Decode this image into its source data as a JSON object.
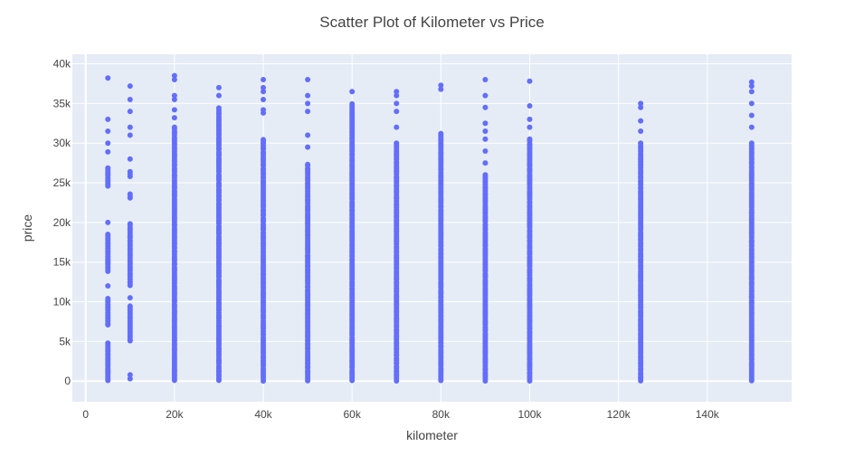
{
  "chart_data": {
    "type": "scatter",
    "title": "Scatter Plot of Kilometer vs Price",
    "xlabel": "kilometer",
    "ylabel": "price",
    "xlim": [
      -3000,
      159000
    ],
    "ylim": [
      -2600,
      41200
    ],
    "grid": true,
    "x_ticks": [
      0,
      20000,
      40000,
      60000,
      80000,
      100000,
      120000,
      140000
    ],
    "x_tick_labels": [
      "0",
      "20k",
      "40k",
      "60k",
      "80k",
      "100k",
      "120k",
      "140k"
    ],
    "y_ticks": [
      0,
      5000,
      10000,
      15000,
      20000,
      25000,
      30000,
      35000,
      40000
    ],
    "y_tick_labels": [
      "0",
      "5k",
      "10k",
      "15k",
      "20k",
      "25k",
      "30k",
      "35k",
      "40k"
    ],
    "colors": {
      "marker": "#636efa",
      "plot_bg": "#e5ecf6",
      "grid": "#ffffff",
      "text": "#444444"
    },
    "columns": [
      {
        "x": 5000,
        "dense": [
          [
            0,
            4800
          ],
          [
            7000,
            10500
          ],
          [
            13800,
            18500
          ],
          [
            24500,
            27000
          ]
        ],
        "outliers": [
          1200,
          12000,
          15000,
          20000,
          28900,
          30000,
          31500,
          33000,
          38200
        ]
      },
      {
        "x": 10000,
        "dense": [
          [
            5000,
            9500
          ],
          [
            12000,
            20000
          ],
          [
            23000,
            23700
          ],
          [
            25800,
            26500
          ]
        ],
        "outliers": [
          300,
          800,
          10500,
          28000,
          31000,
          32000,
          34000,
          35500,
          37200
        ]
      },
      {
        "x": 20000,
        "dense": [
          [
            0,
            32000
          ]
        ],
        "outliers": [
          33200,
          34200,
          35500,
          36000,
          38000,
          38500
        ]
      },
      {
        "x": 30000,
        "dense": [
          [
            0,
            34500
          ]
        ],
        "outliers": [
          36000,
          37000
        ]
      },
      {
        "x": 40000,
        "dense": [
          [
            0,
            30500
          ]
        ],
        "outliers": [
          33800,
          34200,
          35500,
          36500,
          37000,
          38000
        ]
      },
      {
        "x": 50000,
        "dense": [
          [
            0,
            27500
          ]
        ],
        "outliers": [
          29500,
          31000,
          34000,
          35000,
          36000,
          38000
        ]
      },
      {
        "x": 60000,
        "dense": [
          [
            0,
            35000
          ]
        ],
        "outliers": [
          36500
        ]
      },
      {
        "x": 70000,
        "dense": [
          [
            0,
            30000
          ]
        ],
        "outliers": [
          32000,
          34000,
          35000,
          36000,
          36500
        ]
      },
      {
        "x": 80000,
        "dense": [
          [
            0,
            31200
          ]
        ],
        "outliers": [
          36800,
          37300
        ]
      },
      {
        "x": 90000,
        "dense": [
          [
            0,
            26000
          ]
        ],
        "outliers": [
          27500,
          29000,
          30500,
          31500,
          32500,
          34500,
          36000,
          38000
        ]
      },
      {
        "x": 100000,
        "dense": [
          [
            0,
            30500
          ]
        ],
        "outliers": [
          32000,
          33000,
          34700,
          37800
        ]
      },
      {
        "x": 125000,
        "dense": [
          [
            0,
            30000
          ]
        ],
        "outliers": [
          31500,
          32800,
          34500,
          35000
        ]
      },
      {
        "x": 150000,
        "dense": [
          [
            0,
            30000
          ]
        ],
        "outliers": [
          32000,
          33500,
          35000,
          36500,
          37200,
          37700
        ]
      }
    ]
  }
}
